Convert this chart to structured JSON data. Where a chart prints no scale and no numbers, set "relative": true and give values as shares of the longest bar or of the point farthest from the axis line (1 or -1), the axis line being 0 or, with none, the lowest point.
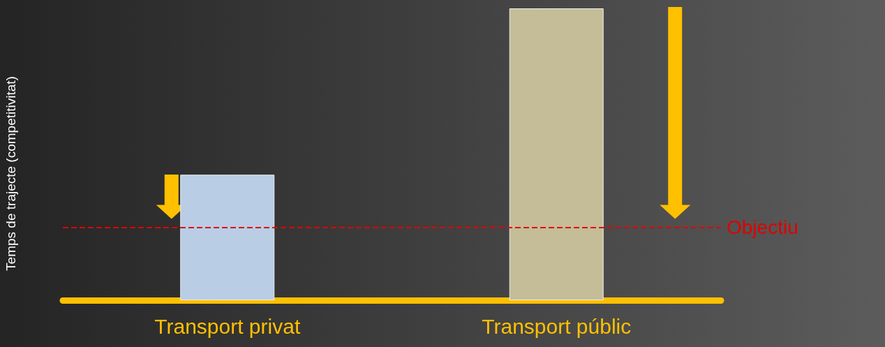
{
  "chart_data": {
    "type": "bar",
    "relative": true,
    "ylabel": "Temps de trajecte (competitivitat)",
    "categories": [
      "Transport privat",
      "Transport públic"
    ],
    "values": [
      0.43,
      1
    ],
    "colors": [
      "#b9cde5",
      "#c4bd97"
    ],
    "ref_lines": [
      {
        "axis": "y",
        "value": 0.25,
        "label": "Objectiu",
        "color": "#e00000",
        "line_style": "dashed"
      }
    ]
  }
}
